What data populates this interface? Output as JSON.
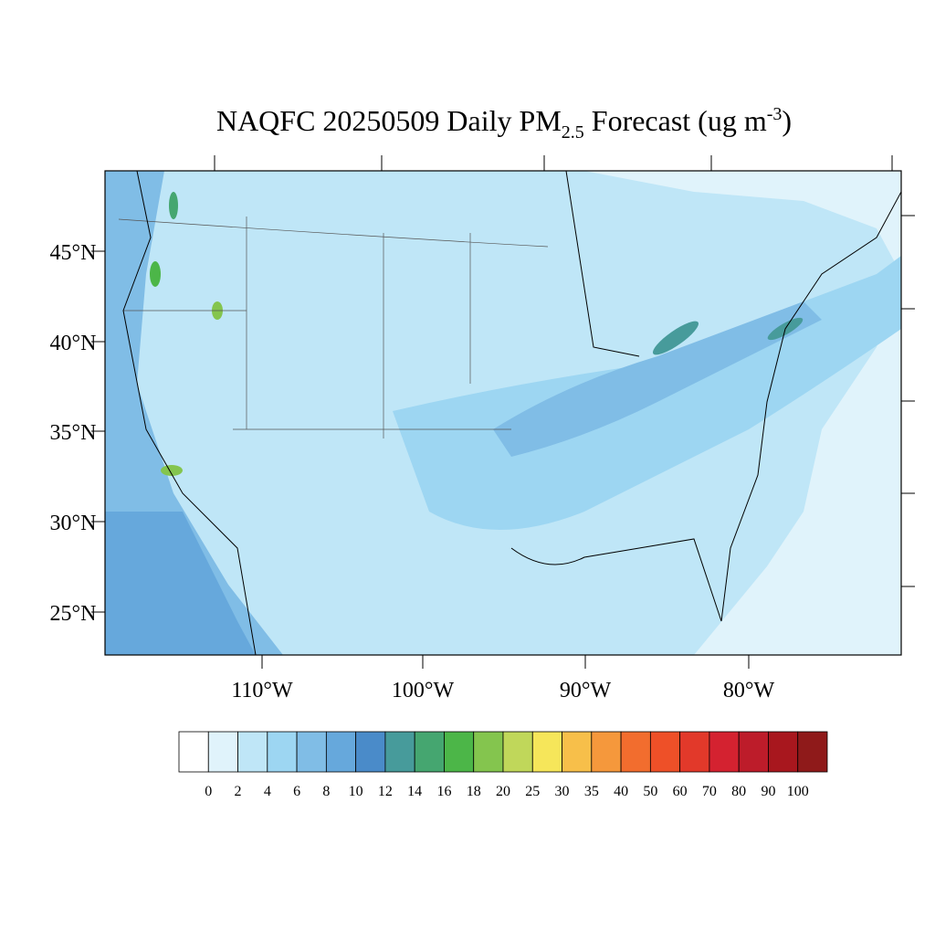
{
  "title_parts": {
    "main": "NAQFC 20250509 Daily PM",
    "subscript": "2.5",
    "middle": " Forecast (ug m",
    "superscript": "-3",
    "end": ")"
  },
  "lat_labels": [
    "45°N",
    "40°N",
    "35°N",
    "30°N",
    "25°N"
  ],
  "lon_labels": [
    "110°W",
    "100°W",
    "90°W",
    "80°W"
  ],
  "colorbar": {
    "levels": [
      0,
      2,
      4,
      6,
      8,
      10,
      12,
      14,
      16,
      18,
      20,
      25,
      30,
      35,
      40,
      50,
      60,
      70,
      80,
      90,
      100
    ],
    "colors": [
      "#ffffff",
      "#e0f3fb",
      "#bfe6f7",
      "#9dd6f2",
      "#80bde6",
      "#66a8dc",
      "#4a8bc9",
      "#479b9b",
      "#45a670",
      "#4cb648",
      "#84c54e",
      "#c0d75a",
      "#f6e65a",
      "#f7bf4a",
      "#f5983c",
      "#f26d2e",
      "#ee5028",
      "#e2392a",
      "#d42230",
      "#bd1c2a",
      "#a8171e",
      "#8f1a1a"
    ]
  }
}
